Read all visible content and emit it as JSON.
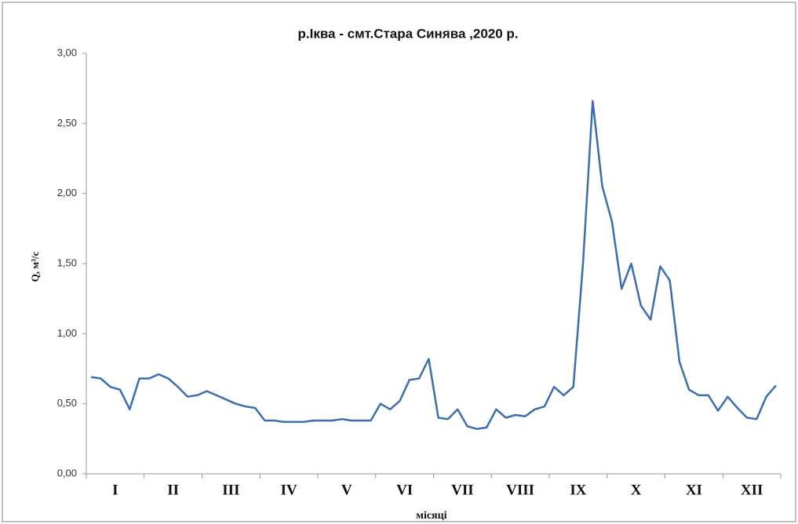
{
  "chart_data": {
    "type": "line",
    "title": "р.Іква - смт.Стара Синява ,2020 р.",
    "ylabel": "Q, м³/с",
    "xlabel": "місяці",
    "categories": [
      null,
      null,
      "I",
      null,
      null,
      null,
      null,
      null,
      "II",
      null,
      null,
      null,
      null,
      null,
      "III",
      null,
      null,
      null,
      null,
      null,
      "IV",
      null,
      null,
      null,
      null,
      null,
      "V",
      null,
      null,
      null,
      null,
      null,
      "VI",
      null,
      null,
      null,
      null,
      null,
      "VII",
      null,
      null,
      null,
      null,
      null,
      "VIII",
      null,
      null,
      null,
      null,
      null,
      "IX",
      null,
      null,
      null,
      null,
      null,
      "X",
      null,
      null,
      null,
      null,
      null,
      "XI",
      null,
      null,
      null,
      null,
      null,
      "XII",
      null,
      null,
      null
    ],
    "series": [
      {
        "name": "Q",
        "color": "#3a6eb0",
        "values": [
          0.69,
          0.68,
          0.62,
          0.6,
          0.46,
          0.68,
          0.68,
          0.71,
          0.68,
          0.62,
          0.55,
          0.56,
          0.59,
          0.56,
          0.53,
          0.5,
          0.48,
          0.47,
          0.38,
          0.38,
          0.37,
          0.37,
          0.37,
          0.38,
          0.38,
          0.38,
          0.39,
          0.38,
          0.38,
          0.38,
          0.5,
          0.46,
          0.52,
          0.67,
          0.68,
          0.82,
          0.4,
          0.39,
          0.46,
          0.34,
          0.32,
          0.33,
          0.46,
          0.4,
          0.42,
          0.41,
          0.46,
          0.48,
          0.62,
          0.56,
          0.62,
          1.5,
          2.66,
          2.05,
          1.8,
          1.32,
          1.5,
          1.2,
          1.1,
          1.48,
          1.38,
          0.8,
          0.6,
          0.56,
          0.56,
          0.45,
          0.55,
          0.47,
          0.4,
          0.39,
          0.55,
          0.63
        ]
      }
    ],
    "ylim": [
      0,
      3
    ],
    "yticks": [
      {
        "value": 0,
        "label": "0,00"
      },
      {
        "value": 0.5,
        "label": "0,50"
      },
      {
        "value": 1,
        "label": "1,00"
      },
      {
        "value": 1.5,
        "label": "1,50"
      },
      {
        "value": 2,
        "label": "2,00"
      },
      {
        "value": 2.5,
        "label": "2,50"
      },
      {
        "value": 3,
        "label": "3,00"
      }
    ],
    "grid": false
  }
}
